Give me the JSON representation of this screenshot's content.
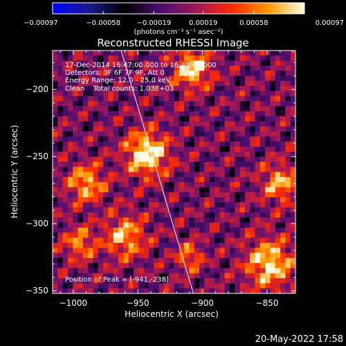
{
  "chart_data": {
    "type": "heatmap",
    "title": "Reconstructed RHESSI Image",
    "xlabel": "Heliocentric X (arcsec)",
    "ylabel": "Heliocentric Y (arcsec)",
    "xlim": [
      -1016,
      -828
    ],
    "ylim": [
      -352,
      -171
    ],
    "x_ticks": [
      -1000,
      -950,
      -900,
      -850
    ],
    "x_tick_labels": [
      "−1000",
      "−950",
      "−900",
      "−850"
    ],
    "y_ticks": [
      -200,
      -250,
      -300,
      -350
    ],
    "y_tick_labels": [
      "−200",
      "−250",
      "−300",
      "−350"
    ],
    "colorbar": {
      "range": [
        -0.00097,
        0.00097
      ],
      "ticks": [
        -0.00097,
        -0.00058,
        -0.00019,
        0.00019,
        0.00058,
        0.00097
      ],
      "tick_labels": [
        "−0.00097",
        "−0.00058",
        "−0.00019",
        "0.00019",
        "0.00058",
        "0.00097"
      ],
      "unit_label": "(photons cm⁻² s⁻¹ asec⁻²)",
      "colors": [
        "#0000ff",
        "#1a1a8a",
        "#000000",
        "#4a0e70",
        "#a01858",
        "#ff2a00",
        "#ff9a00",
        "#ffffe6"
      ]
    },
    "annotations": [
      "17-Dec-2014 16:47:00.000 to 16:48:44.000",
      "Detectors: 3F 6F 7F 9F, Att 0",
      "Energy Range: 12.0 - 25.0 keV",
      "Clean    Total counts: 1.03E+03"
    ],
    "peak_label": "Position of Peak = [-941,-238]",
    "peak": [
      -941,
      -238
    ],
    "limb_line": [
      [
        -963,
        -171
      ],
      [
        -907,
        -352
      ]
    ],
    "bright_sources": [
      {
        "x": -943,
        "y": -248,
        "intensity": 0.00097,
        "radius_arcsec": 16
      },
      {
        "x": -908,
        "y": -185,
        "intensity": 0.0008,
        "radius_arcsec": 14
      },
      {
        "x": -848,
        "y": -330,
        "intensity": 0.0008,
        "radius_arcsec": 18
      },
      {
        "x": -990,
        "y": -270,
        "intensity": 0.00065,
        "radius_arcsec": 14
      },
      {
        "x": -960,
        "y": -310,
        "intensity": 0.00062,
        "radius_arcsec": 16
      },
      {
        "x": -840,
        "y": -270,
        "intensity": 0.0006,
        "radius_arcsec": 14
      },
      {
        "x": -910,
        "y": -325,
        "intensity": 0.0005,
        "radius_arcsec": 10
      },
      {
        "x": -995,
        "y": -315,
        "intensity": 0.00052,
        "radius_arcsec": 12
      }
    ]
  },
  "footer": {
    "timestamp": "20-May-2022 17:58"
  },
  "colors": {
    "background": "#000000",
    "foreground": "#ffffff",
    "limb_line": "#ffffff"
  }
}
